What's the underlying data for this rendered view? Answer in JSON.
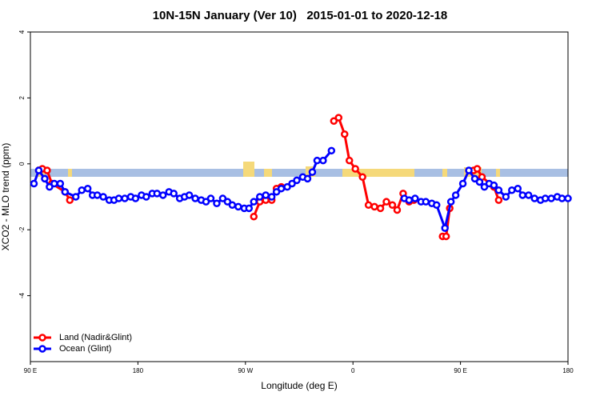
{
  "chart_data": {
    "type": "line",
    "title": "10N-15N January (Ver 10)   2015-01-01 to 2020-12-18",
    "x_label": "Longitude (deg E)",
    "y_label": "XCO2 - MLO trend (ppm)",
    "xlim": [
      90,
      540
    ],
    "ylim": [
      -6,
      4
    ],
    "xticks": [
      {
        "value": 90,
        "label": "90 E"
      },
      {
        "value": 180,
        "label": "180"
      },
      {
        "value": 270,
        "label": "90 W"
      },
      {
        "value": 360,
        "label": "0"
      },
      {
        "value": 450,
        "label": "90 E"
      },
      {
        "value": 540,
        "label": "180"
      }
    ],
    "yticks": [
      -4,
      -2,
      0,
      2,
      4
    ],
    "legend": "bottom-left",
    "series": [
      {
        "name": "Land (Nadir&Glint)",
        "color": "#ff0000",
        "x": [
          97,
          100,
          104,
          108,
          119,
          123,
          200,
          277,
          282,
          287,
          292,
          296,
          300,
          360,
          344,
          348,
          353,
          357,
          362,
          368,
          373,
          378,
          383,
          388,
          393,
          397,
          402,
          407,
          411,
          530,
          435,
          438,
          441,
          580,
          461,
          464,
          468,
          478,
          482
        ],
        "values": [
          -0.2,
          -0.15,
          -0.2,
          -0.6,
          -0.85,
          -1.1,
          null,
          -1.6,
          -1.15,
          -1.1,
          -1.1,
          -0.75,
          -0.7,
          null,
          1.3,
          1.4,
          0.9,
          0.1,
          -0.15,
          -0.4,
          -1.25,
          -1.3,
          -1.35,
          -1.15,
          -1.25,
          -1.4,
          -0.9,
          -1.15,
          -1.1,
          null,
          -2.2,
          -2.2,
          -1.35,
          null,
          -0.2,
          -0.15,
          -0.4,
          -0.7,
          -1.1
        ]
      },
      {
        "name": "Ocean (Glint)",
        "color": "#0000ff",
        "x": [
          93,
          97,
          102,
          106,
          110,
          115,
          119,
          128,
          133,
          138,
          142,
          146,
          151,
          156,
          160,
          164,
          169,
          174,
          178,
          183,
          187,
          192,
          196,
          201,
          206,
          210,
          215,
          219,
          223,
          228,
          233,
          237,
          241,
          246,
          251,
          255,
          259,
          264,
          269,
          273,
          277,
          282,
          287,
          292,
          296,
          300,
          305,
          309,
          313,
          318,
          322,
          326,
          330,
          335,
          342,
          370,
          403,
          407,
          412,
          417,
          421,
          426,
          430,
          437,
          442,
          446,
          452,
          457,
          462,
          466,
          470,
          474,
          478,
          482,
          488,
          493,
          498,
          502,
          507,
          512,
          517,
          521,
          526,
          531,
          535,
          540
        ],
        "values": [
          -0.6,
          -0.2,
          -0.45,
          -0.7,
          -0.6,
          -0.6,
          -0.85,
          -1.0,
          -0.8,
          -0.75,
          -0.95,
          -0.95,
          -1.0,
          -1.1,
          -1.1,
          -1.05,
          -1.05,
          -1.0,
          -1.05,
          -0.95,
          -1.0,
          -0.9,
          -0.9,
          -0.95,
          -0.85,
          -0.9,
          -1.05,
          -1.0,
          -0.95,
          -1.05,
          -1.1,
          -1.15,
          -1.05,
          -1.2,
          -1.05,
          -1.15,
          -1.25,
          -1.3,
          -1.35,
          -1.35,
          -1.15,
          -1.0,
          -0.95,
          -1.0,
          -0.85,
          -0.75,
          -0.7,
          -0.6,
          -0.5,
          -0.4,
          -0.45,
          -0.25,
          0.1,
          0.1,
          0.4,
          null,
          -1.05,
          -1.1,
          -1.05,
          -1.15,
          -1.15,
          -1.2,
          -1.25,
          -1.95,
          -1.15,
          -0.95,
          -0.6,
          -0.2,
          -0.45,
          -0.55,
          -0.7,
          -0.6,
          -0.65,
          -0.8,
          -1.0,
          -0.8,
          -0.75,
          -0.95,
          -0.95,
          -1.05,
          -1.1,
          -1.05,
          -1.05,
          -1.0,
          -1.05,
          -1.05
        ]
      }
    ]
  }
}
